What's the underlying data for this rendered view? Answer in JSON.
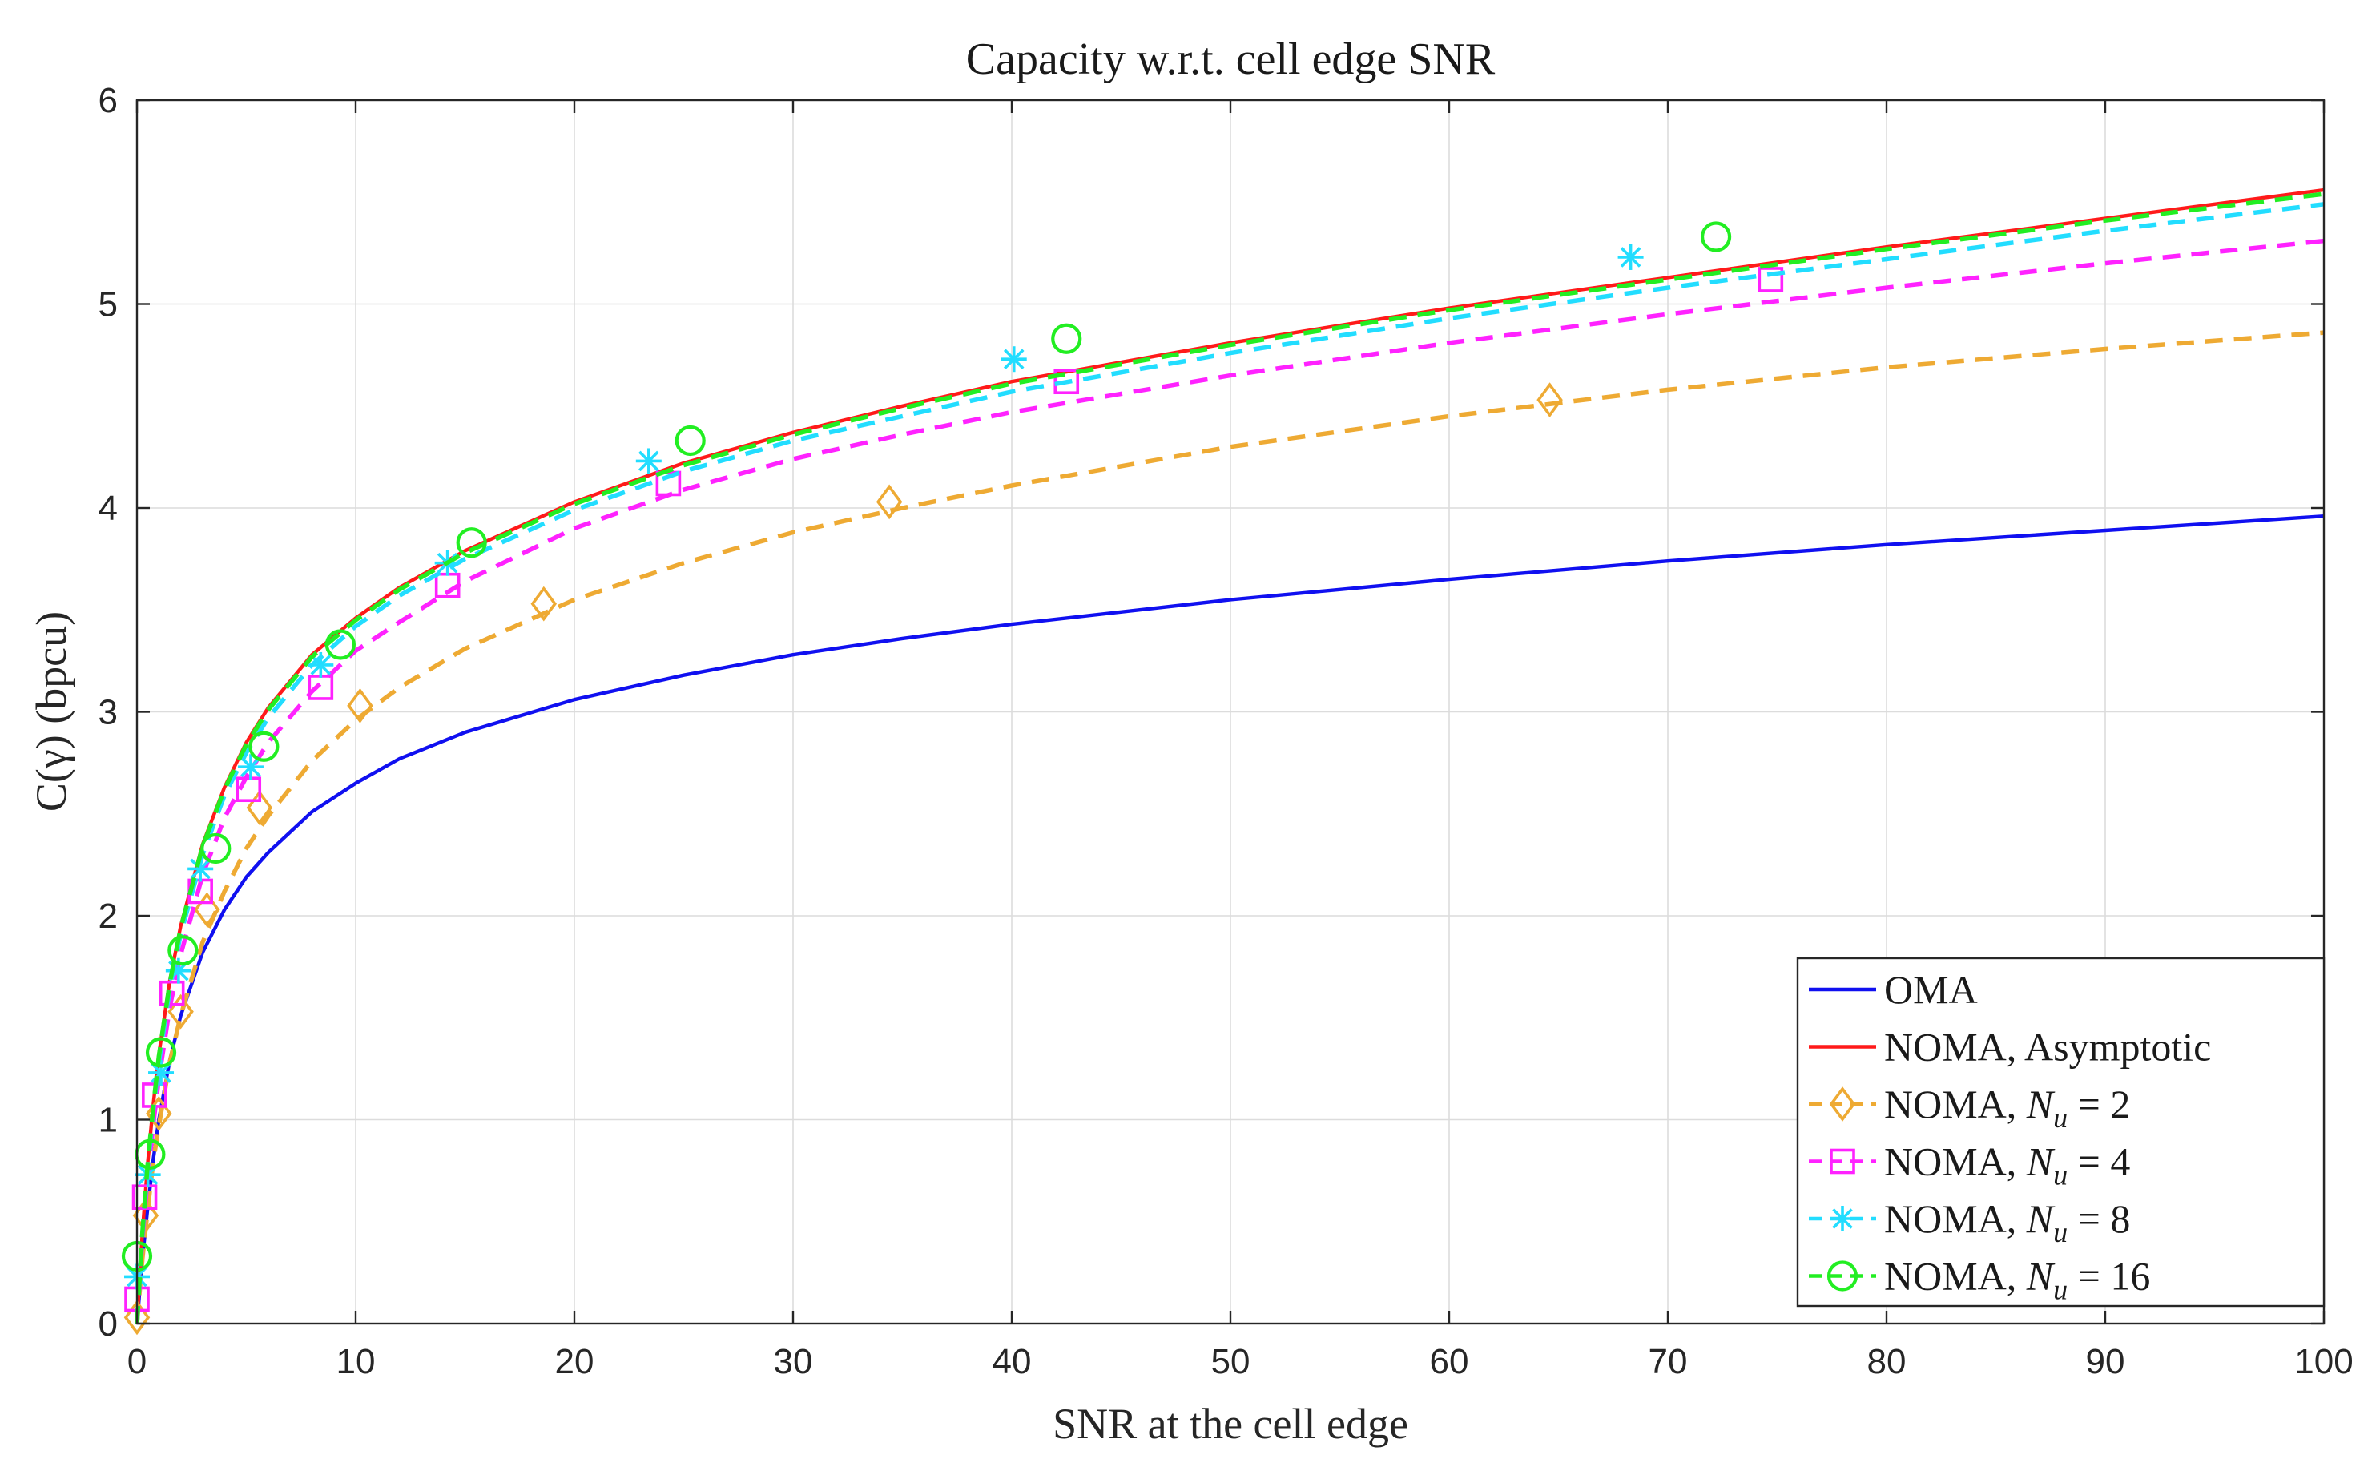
{
  "chart_data": {
    "type": "line",
    "title": "Capacity w.r.t. cell edge SNR",
    "xlabel": "SNR at the cell edge",
    "ylabel": "C(γ) (bpcu)",
    "xlim": [
      0,
      100
    ],
    "ylim": [
      0,
      6
    ],
    "xticks": [
      0,
      10,
      20,
      30,
      40,
      50,
      60,
      70,
      80,
      90,
      100
    ],
    "yticks": [
      0,
      1,
      2,
      3,
      4,
      5,
      6
    ],
    "grid": true,
    "legend_position": "bottom-right",
    "series": [
      {
        "name": "OMA",
        "legend_label": "OMA",
        "color": "#1010f0",
        "dash": "solid",
        "marker": "none",
        "x": [
          0,
          0.25,
          0.5,
          0.75,
          1,
          1.5,
          2,
          3,
          4,
          5,
          6,
          8,
          10,
          12,
          15,
          20,
          25,
          30,
          35,
          40,
          50,
          60,
          70,
          80,
          90,
          100
        ],
        "y": [
          0,
          0.32,
          0.58,
          0.81,
          1.0,
          1.29,
          1.51,
          1.82,
          2.03,
          2.19,
          2.31,
          2.51,
          2.65,
          2.77,
          2.9,
          3.06,
          3.18,
          3.28,
          3.36,
          3.43,
          3.55,
          3.65,
          3.74,
          3.82,
          3.89,
          3.96
        ],
        "markers_x": [],
        "markers_y": []
      },
      {
        "name": "NOMA, Asymptotic",
        "legend_label": "NOMA, Asymptotic",
        "color": "#ff1a1a",
        "dash": "solid",
        "marker": "none",
        "x": [
          0,
          0.25,
          0.5,
          0.75,
          1,
          1.5,
          2,
          3,
          4,
          5,
          6,
          8,
          10,
          12,
          15,
          20,
          25,
          30,
          35,
          40,
          50,
          60,
          70,
          80,
          90,
          100
        ],
        "y": [
          0,
          0.45,
          0.8,
          1.08,
          1.32,
          1.68,
          1.95,
          2.35,
          2.63,
          2.85,
          3.02,
          3.28,
          3.46,
          3.61,
          3.79,
          4.03,
          4.22,
          4.37,
          4.5,
          4.62,
          4.81,
          4.98,
          5.13,
          5.28,
          5.42,
          5.56
        ],
        "markers_x": [],
        "markers_y": []
      },
      {
        "name": "NOMA, N_u = 2",
        "legend_label": "NOMA, ",
        "legend_sym": "N",
        "legend_sub": "u",
        "legend_eq": " = 2",
        "color": "#eeaa33",
        "dash": "dashed",
        "marker": "diamond",
        "x": [
          0,
          0.25,
          0.5,
          0.75,
          1,
          1.5,
          2,
          3,
          4,
          5,
          6,
          8,
          10,
          12,
          15,
          20,
          25,
          30,
          35,
          40,
          50,
          60,
          70,
          80,
          90,
          100
        ],
        "y": [
          0,
          0.32,
          0.57,
          0.8,
          0.97,
          1.28,
          1.51,
          1.87,
          2.12,
          2.33,
          2.49,
          2.76,
          2.96,
          3.12,
          3.31,
          3.55,
          3.73,
          3.88,
          4.0,
          4.11,
          4.3,
          4.45,
          4.58,
          4.69,
          4.78,
          4.86
        ],
        "markers_x": [
          0,
          0.4,
          1,
          2,
          3.2,
          5.6,
          10.2,
          18.6,
          34.4,
          64.6
        ],
        "markers_y": [
          0.03,
          0.53,
          1.03,
          1.53,
          2.03,
          2.53,
          3.03,
          3.53,
          4.03,
          4.53
        ]
      },
      {
        "name": "NOMA, N_u = 4",
        "legend_label": "NOMA, ",
        "legend_sym": "N",
        "legend_sub": "u",
        "legend_eq": " = 4",
        "color": "#ff22ff",
        "dash": "dashed",
        "marker": "square",
        "x": [
          0,
          0.25,
          0.5,
          0.75,
          1,
          1.5,
          2,
          3,
          4,
          5,
          6,
          8,
          10,
          12,
          15,
          20,
          25,
          30,
          35,
          40,
          50,
          60,
          70,
          80,
          90,
          100
        ],
        "y": [
          0,
          0.42,
          0.73,
          0.98,
          1.2,
          1.55,
          1.81,
          2.2,
          2.48,
          2.68,
          2.85,
          3.1,
          3.3,
          3.44,
          3.64,
          3.9,
          4.09,
          4.24,
          4.36,
          4.47,
          4.65,
          4.81,
          4.95,
          5.08,
          5.2,
          5.31
        ],
        "markers_x": [
          0,
          0.35,
          0.8,
          1.6,
          2.9,
          5.1,
          8.4,
          14.2,
          24.3,
          42.5,
          74.7
        ],
        "markers_y": [
          0.12,
          0.62,
          1.12,
          1.62,
          2.12,
          2.62,
          3.12,
          3.62,
          4.12,
          4.62,
          5.12
        ]
      },
      {
        "name": "NOMA, N_u = 8",
        "legend_label": "NOMA, ",
        "legend_sym": "N",
        "legend_sub": "u",
        "legend_eq": " = 8",
        "color": "#22ddff",
        "dash": "dashed",
        "marker": "asterisk",
        "x": [
          0,
          0.25,
          0.5,
          0.75,
          1,
          1.5,
          2,
          3,
          4,
          5,
          6,
          8,
          10,
          12,
          15,
          20,
          25,
          30,
          35,
          40,
          50,
          60,
          70,
          80,
          90,
          100
        ],
        "y": [
          0,
          0.44,
          0.78,
          1.05,
          1.28,
          1.64,
          1.91,
          2.3,
          2.59,
          2.8,
          2.97,
          3.23,
          3.42,
          3.57,
          3.75,
          3.99,
          4.18,
          4.33,
          4.45,
          4.57,
          4.76,
          4.93,
          5.08,
          5.22,
          5.36,
          5.49
        ],
        "markers_x": [
          0,
          0.5,
          1.1,
          1.9,
          2.9,
          5.2,
          8.4,
          14.2,
          23.4,
          40.1,
          68.3
        ],
        "markers_y": [
          0.23,
          0.73,
          1.23,
          1.73,
          2.23,
          2.73,
          3.23,
          3.73,
          4.23,
          4.73,
          5.23
        ]
      },
      {
        "name": "NOMA, N_u = 16",
        "legend_label": "NOMA, ",
        "legend_sym": "N",
        "legend_sub": "u",
        "legend_eq": " = 16",
        "color": "#22ee22",
        "dash": "dashed",
        "marker": "circle",
        "x": [
          0,
          0.25,
          0.5,
          0.75,
          1,
          1.5,
          2,
          3,
          4,
          5,
          6,
          8,
          10,
          12,
          15,
          20,
          25,
          30,
          35,
          40,
          50,
          60,
          70,
          80,
          90,
          100
        ],
        "y": [
          0,
          0.45,
          0.8,
          1.07,
          1.31,
          1.67,
          1.94,
          2.34,
          2.62,
          2.84,
          3.01,
          3.27,
          3.45,
          3.6,
          3.78,
          4.02,
          4.21,
          4.36,
          4.49,
          4.61,
          4.8,
          4.97,
          5.12,
          5.27,
          5.41,
          5.54
        ],
        "markers_x": [
          0,
          0.6,
          1.1,
          2.1,
          3.6,
          5.8,
          9.3,
          15.3,
          25.3,
          42.5,
          72.2
        ],
        "markers_y": [
          0.33,
          0.83,
          1.33,
          1.83,
          2.33,
          2.83,
          3.33,
          3.83,
          4.33,
          4.83,
          5.33
        ]
      }
    ]
  }
}
